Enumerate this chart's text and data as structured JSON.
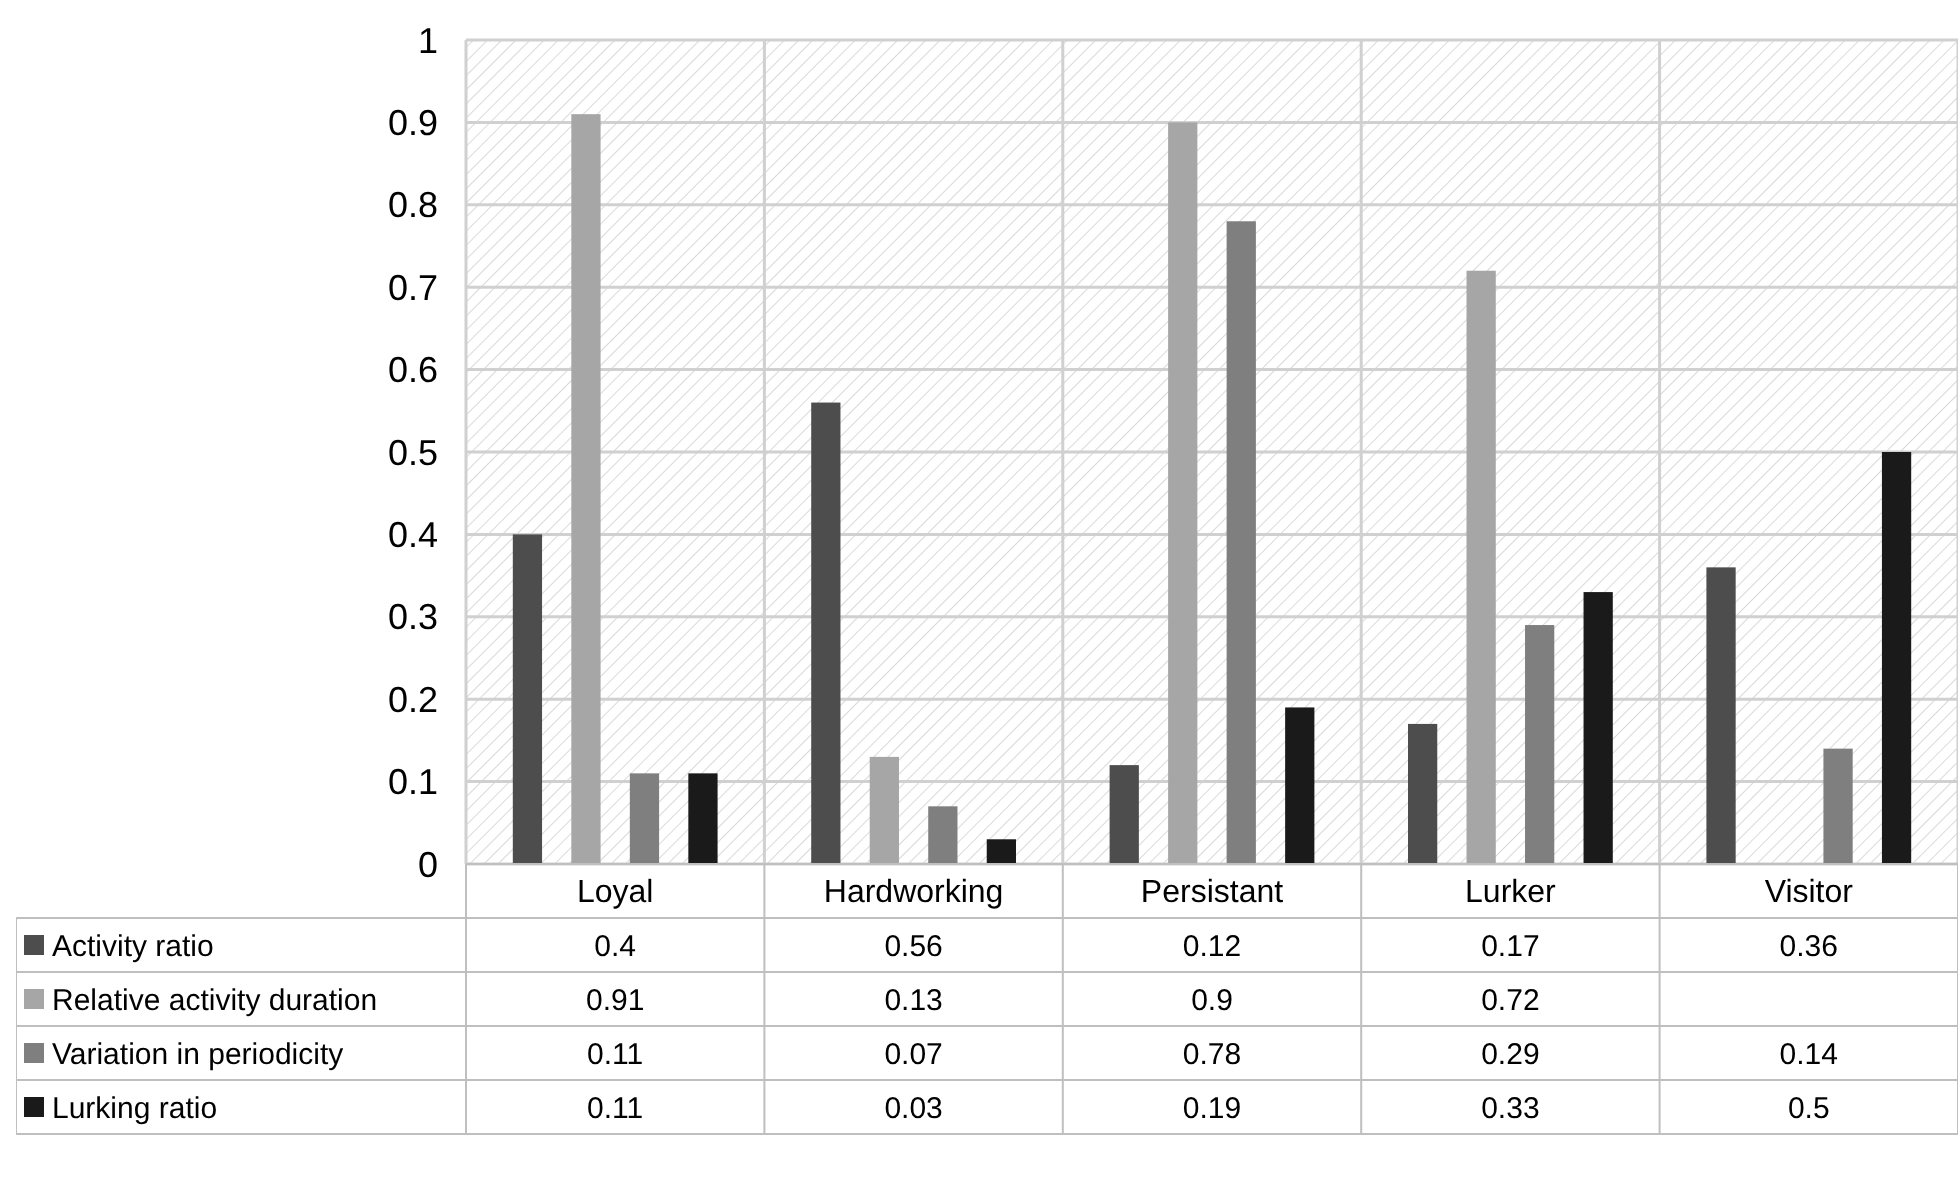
{
  "chart_data": {
    "type": "bar",
    "categories": [
      "Loyal",
      "Hardworking",
      "Persistant",
      "Lurker",
      "Visitor"
    ],
    "series": [
      {
        "name": "Activity ratio",
        "color": "#4d4d4d",
        "values": [
          0.4,
          0.56,
          0.12,
          0.17,
          0.36
        ]
      },
      {
        "name": "Relative activity duration",
        "color": "#a6a6a6",
        "values": [
          0.91,
          0.13,
          0.9,
          0.72,
          null
        ]
      },
      {
        "name": "Variation in periodicity",
        "color": "#7f7f7f",
        "values": [
          0.11,
          0.07,
          0.78,
          0.29,
          0.14
        ]
      },
      {
        "name": "Lurking ratio",
        "color": "#1a1a1a",
        "values": [
          0.11,
          0.03,
          0.19,
          0.33,
          0.5
        ]
      }
    ],
    "ylim": [
      0,
      1
    ],
    "yticks": [
      0,
      0.1,
      0.2,
      0.3,
      0.4,
      0.5,
      0.6,
      0.7,
      0.8,
      0.9,
      1
    ],
    "grid": true,
    "legend": "bottom",
    "data_labels": true
  }
}
